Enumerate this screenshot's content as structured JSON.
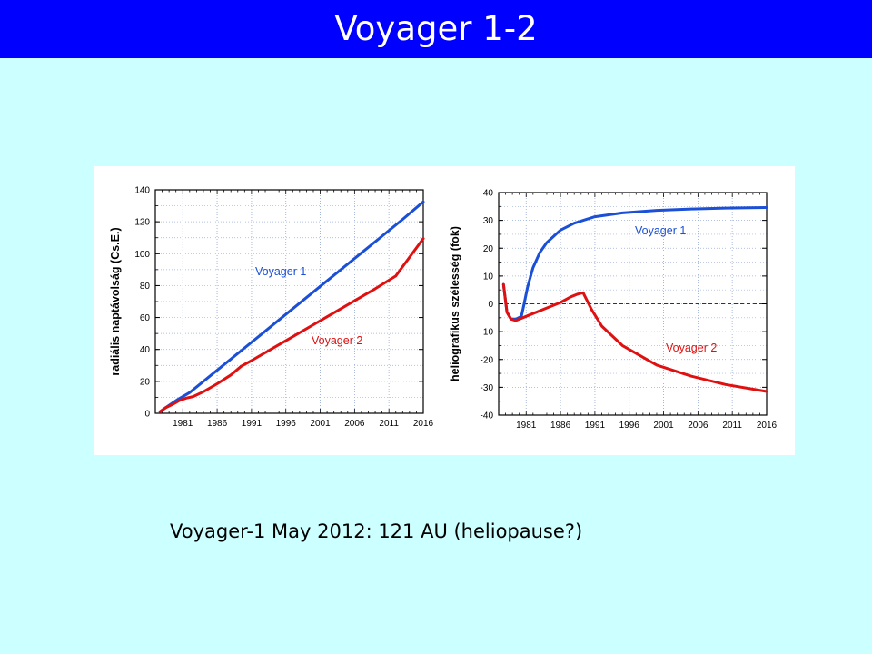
{
  "slide": {
    "title": "Voyager 1-2",
    "caption": "Voyager-1 May 2012: 121 AU (heliopause?)"
  },
  "colors": {
    "title_bar": "#0000ff",
    "background": "#ccffff",
    "voyager1": "#1a4fd6",
    "voyager2": "#e01010",
    "grid": "#9aaed8"
  },
  "chart_data": [
    {
      "type": "line",
      "ylabel": "radiális naptávolság (Cs.E.)",
      "xlabel": "",
      "xlim": [
        1977,
        2016
      ],
      "ylim": [
        0,
        140
      ],
      "xticks": [
        1981,
        1986,
        1991,
        1996,
        2001,
        2006,
        2011,
        2016
      ],
      "yticks": [
        0,
        20,
        40,
        60,
        80,
        100,
        120,
        140
      ],
      "grid": true,
      "series": [
        {
          "name": "Voyager 1",
          "x": [
            1977.7,
            1978.5,
            1979.2,
            1980.2,
            1981.0,
            1982,
            1984,
            1986,
            1988,
            1990,
            1992,
            1995,
            1998,
            2001,
            2004,
            2007,
            2010,
            2013,
            2016
          ],
          "values": [
            1.0,
            3.5,
            5.5,
            8.5,
            10.5,
            13.0,
            20.0,
            27.0,
            34.0,
            41.0,
            48.0,
            58.5,
            69.0,
            79.5,
            90.0,
            100.5,
            111.0,
            121.5,
            132.5
          ]
        },
        {
          "name": "Voyager 2",
          "x": [
            1977.7,
            1978.5,
            1979.5,
            1980.5,
            1981.5,
            1982.5,
            1984,
            1986,
            1988,
            1989.5,
            1991,
            1994,
            1997,
            2000,
            2003,
            2006,
            2009,
            2012,
            2016
          ],
          "values": [
            1.0,
            3.5,
            5.5,
            8.0,
            9.5,
            10.5,
            13.5,
            18.5,
            24.0,
            29.5,
            33.0,
            40.5,
            48.0,
            55.5,
            63.0,
            70.5,
            78.0,
            86.0,
            109.5
          ]
        }
      ]
    },
    {
      "type": "line",
      "ylabel": "heliografikus szélesség (fok)",
      "xlabel": "",
      "xlim": [
        1977,
        2016
      ],
      "ylim": [
        -40,
        40
      ],
      "xticks": [
        1981,
        1986,
        1991,
        1996,
        2001,
        2006,
        2011,
        2016
      ],
      "yticks": [
        -40,
        -30,
        -20,
        -10,
        0,
        10,
        20,
        30,
        40
      ],
      "grid": true,
      "zero_line": "dashed",
      "series": [
        {
          "name": "Voyager 1",
          "x": [
            1977.7,
            1978.2,
            1978.8,
            1979.5,
            1980.3,
            1980.7,
            1981.2,
            1982,
            1983,
            1984,
            1986,
            1988,
            1991,
            1995,
            2000,
            2005,
            2010,
            2016
          ],
          "values": [
            7,
            -3,
            -5.5,
            -5.5,
            -4.5,
            0,
            6,
            13,
            18.5,
            22,
            26.5,
            29,
            31.3,
            32.7,
            33.6,
            34.1,
            34.4,
            34.6
          ]
        },
        {
          "name": "Voyager 2",
          "x": [
            1977.7,
            1978.2,
            1978.8,
            1979.5,
            1980.5,
            1982,
            1984,
            1986,
            1987.5,
            1988.5,
            1989.3,
            1990.5,
            1992,
            1995,
            2000,
            2005,
            2010,
            2016
          ],
          "values": [
            7,
            -3,
            -5.5,
            -6,
            -5,
            -3.5,
            -1.5,
            0.5,
            2.5,
            3.5,
            4.0,
            -2,
            -8,
            -15,
            -22,
            -26,
            -29,
            -31.5
          ]
        }
      ]
    }
  ]
}
